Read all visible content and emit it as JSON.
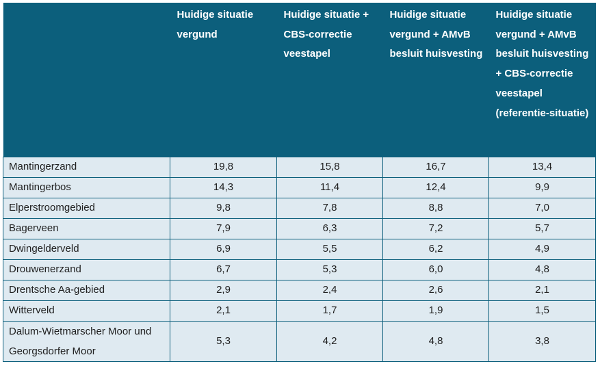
{
  "table": {
    "headers": [
      "",
      "Huidige situatie vergund",
      "Huidige situatie + CBS-correctie veestapel",
      "Huidige situatie vergund + AMvB besluit huisvesting",
      "Huidige situatie vergund + AMvB besluit huisvesting + CBS-correctie veestapel (referentie-situatie)"
    ],
    "rows": [
      {
        "name": "Mantingerzand",
        "values": [
          "19,8",
          "15,8",
          "16,7",
          "13,4"
        ]
      },
      {
        "name": "Mantingerbos",
        "values": [
          "14,3",
          "11,4",
          "12,4",
          "9,9"
        ]
      },
      {
        "name": "Elperstroomgebied",
        "values": [
          "9,8",
          "7,8",
          "8,8",
          "7,0"
        ]
      },
      {
        "name": "Bagerveen",
        "values": [
          "7,9",
          "6,3",
          "7,2",
          "5,7"
        ]
      },
      {
        "name": "Dwingelderveld",
        "values": [
          "6,9",
          "5,5",
          "6,2",
          "4,9"
        ]
      },
      {
        "name": "Drouwenerzand",
        "values": [
          "6,7",
          "5,3",
          "6,0",
          "4,8"
        ]
      },
      {
        "name": "Drentsche Aa-gebied",
        "values": [
          "2,9",
          "2,4",
          "2,6",
          "2,1"
        ]
      },
      {
        "name": "Witterveld",
        "values": [
          "2,1",
          "1,7",
          "1,9",
          "1,5"
        ]
      },
      {
        "name": "Dalum-Wietmarscher Moor und Georgsdorfer Moor",
        "values": [
          "5,3",
          "4,2",
          "4,8",
          "3,8"
        ]
      }
    ]
  },
  "colors": {
    "header_bg": "#0c5f7c",
    "row_bg": "#dfeaf1",
    "border": "#0c5f7c"
  }
}
